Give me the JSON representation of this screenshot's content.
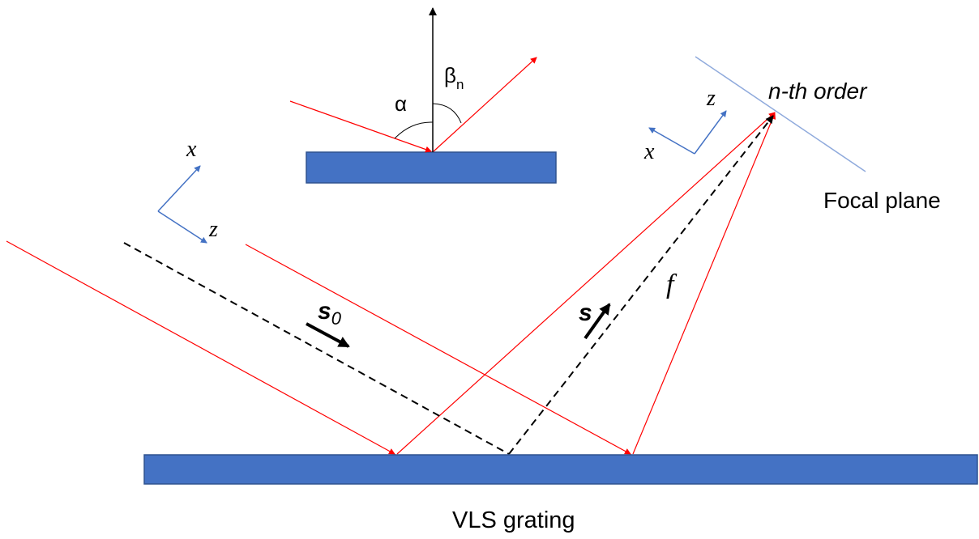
{
  "colors": {
    "grating_fill": "#4472c4",
    "grating_stroke": "#2f528f",
    "ray": "#ff0000",
    "axis": "#4472c4",
    "focal_plane": "#8faadc",
    "normal": "#000000",
    "dashed": "#000000",
    "text": "#000000"
  },
  "labels": {
    "alpha": "α",
    "beta": "β",
    "beta_sub": "n",
    "x_axis": "x",
    "z_axis": "z",
    "order": "n-th order",
    "focal_plane": "Focal plane",
    "s0_main": "s",
    "s0_sub": "0",
    "s_vector": "s",
    "focal_length": "f",
    "grating": "VLS grating"
  },
  "icons": {
    "vector_arrow": "arrow-icon"
  }
}
